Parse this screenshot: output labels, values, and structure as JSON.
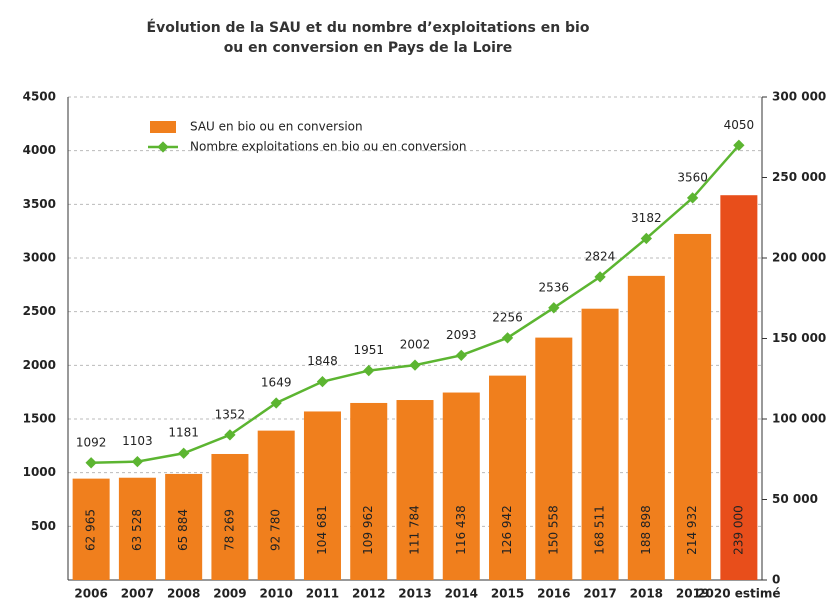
{
  "chart_data": {
    "type": "bar_line",
    "title": [
      "Évolution de la SAU et du nombre d’exploitations en bio",
      "ou en conversion en Pays de la Loire"
    ],
    "categories": [
      "2006",
      "2007",
      "2008",
      "2009",
      "2010",
      "2011",
      "2012",
      "2013",
      "2014",
      "2015",
      "2016",
      "2017",
      "2018",
      "2019",
      "2020 estimé"
    ],
    "series": [
      {
        "name": "SAU en bio ou en conversion",
        "type": "bar",
        "axis": "y2",
        "color": "#f07f1d",
        "colors": [
          "#f07f1d",
          "#f07f1d",
          "#f07f1d",
          "#f07f1d",
          "#f07f1d",
          "#f07f1d",
          "#f07f1d",
          "#f07f1d",
          "#f07f1d",
          "#f07f1d",
          "#f07f1d",
          "#f07f1d",
          "#f07f1d",
          "#f07f1d",
          "#e84e1b"
        ],
        "values": [
          62965,
          63528,
          65884,
          78269,
          92780,
          104681,
          109962,
          111784,
          116438,
          126942,
          150558,
          168511,
          188898,
          214932,
          239000
        ],
        "value_labels": [
          "62 965",
          "63 528",
          "65 884",
          "78 269",
          "92 780",
          "104 681",
          "109 962",
          "111 784",
          "116 438",
          "126 942",
          "150 558",
          "168 511",
          "188 898",
          "214 932",
          "239 000"
        ]
      },
      {
        "name": "Nombre exploitations en bio ou en conversion",
        "type": "line",
        "axis": "y",
        "color": "#5cb531",
        "values": [
          1092,
          1103,
          1181,
          1352,
          1649,
          1848,
          1951,
          2002,
          2093,
          2256,
          2536,
          2824,
          3182,
          3560,
          4050
        ]
      }
    ],
    "ylim": [
      0,
      4500
    ],
    "yticks": [
      500,
      1000,
      1500,
      2000,
      2500,
      3000,
      3500,
      4000,
      4500
    ],
    "y2lim": [
      0,
      300000
    ],
    "y2ticks": [
      0,
      {
        "value": 50000,
        "label": "50 000"
      },
      {
        "value": 100000,
        "label": "100 000"
      },
      {
        "value": 150000,
        "label": "150 000"
      },
      {
        "value": 200000,
        "label": "200 000"
      },
      {
        "value": 250000,
        "label": "250 000"
      },
      {
        "value": 300000,
        "label": "300 000"
      }
    ],
    "grid": true
  }
}
